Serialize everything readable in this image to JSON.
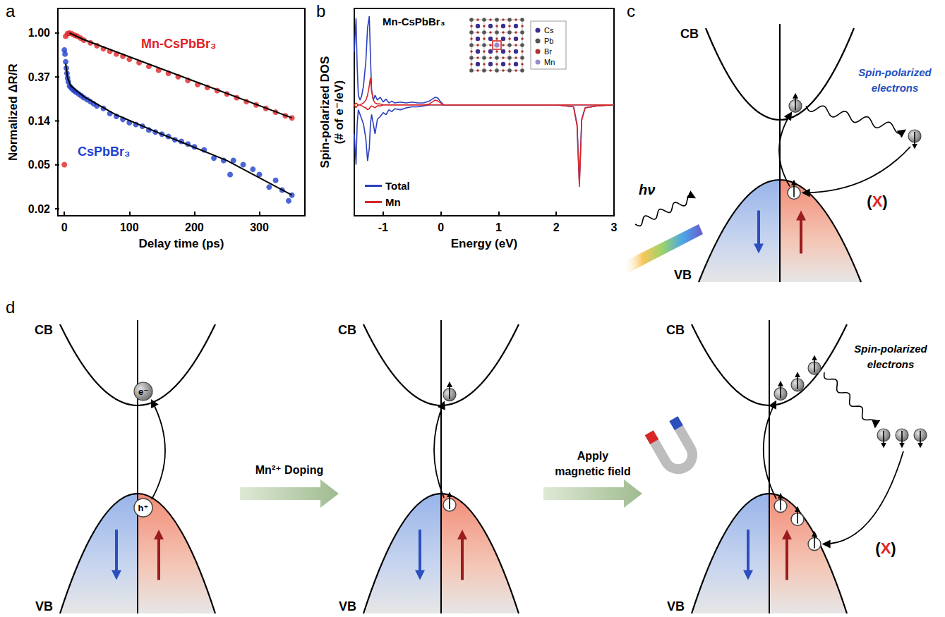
{
  "chart_data": [
    {
      "panel": "a",
      "type": "scatter",
      "log": "y",
      "grid": false,
      "xlabel": "Delay time (ps)",
      "ylabel": "Normalized ΔR/R",
      "xlim": [
        -10,
        370
      ],
      "xticks": [
        0,
        100,
        200,
        300
      ],
      "ylim": [
        0.0156,
        1.75
      ],
      "yticks": [
        {
          "value": 0.0183,
          "label": "0.02"
        },
        {
          "value": 0.0498,
          "label": "0.05"
        },
        {
          "value": 0.1353,
          "label": "0.14"
        },
        {
          "value": 0.3679,
          "label": "0.37"
        },
        {
          "value": 1,
          "label": "1.00"
        }
      ],
      "series": [
        {
          "name": "Mn-CsPbBr₃",
          "color": "#e02424",
          "marker": "circle",
          "x": [
            0,
            2,
            5,
            8,
            12,
            16,
            20,
            25,
            30,
            40,
            50,
            60,
            70,
            80,
            90,
            100,
            115,
            130,
            145,
            160,
            175,
            190,
            205,
            220,
            235,
            250,
            265,
            280,
            295,
            310,
            325,
            340,
            350
          ],
          "values": [
            0.05,
            0.93,
            0.99,
            1.0,
            0.98,
            0.95,
            0.93,
            0.89,
            0.85,
            0.8,
            0.75,
            0.7,
            0.66,
            0.62,
            0.59,
            0.55,
            0.51,
            0.47,
            0.43,
            0.4,
            0.37,
            0.34,
            0.31,
            0.29,
            0.27,
            0.25,
            0.23,
            0.21,
            0.195,
            0.18,
            0.165,
            0.152,
            0.145
          ]
        },
        {
          "name": "CsPbBr₃",
          "color": "#1f3fd0",
          "marker": "circle",
          "x": [
            0,
            1,
            2,
            3,
            4,
            5,
            6,
            8,
            10,
            12,
            15,
            18,
            22,
            26,
            30,
            35,
            40,
            45,
            50,
            60,
            70,
            80,
            90,
            100,
            110,
            120,
            130,
            140,
            150,
            160,
            170,
            180,
            190,
            200,
            215,
            230,
            245,
            255,
            260,
            275,
            290,
            300,
            315,
            325,
            335,
            345,
            350
          ],
          "values": [
            0.68,
            0.62,
            0.52,
            0.45,
            0.4,
            0.36,
            0.33,
            0.3,
            0.29,
            0.28,
            0.27,
            0.26,
            0.25,
            0.24,
            0.23,
            0.22,
            0.21,
            0.2,
            0.19,
            0.18,
            0.16,
            0.15,
            0.14,
            0.13,
            0.125,
            0.12,
            0.11,
            0.105,
            0.1,
            0.095,
            0.088,
            0.085,
            0.08,
            0.075,
            0.07,
            0.058,
            0.055,
            0.04,
            0.055,
            0.05,
            0.045,
            0.04,
            0.03,
            0.035,
            0.028,
            0.022,
            0.025
          ]
        },
        {
          "type": "line",
          "color": "#000000",
          "line_style": "solid",
          "x": [
            8,
            30,
            350
          ],
          "values": [
            1.0,
            0.86,
            0.145
          ]
        },
        {
          "type": "line",
          "color": "#000000",
          "line_style": "solid",
          "x": [
            2,
            5,
            10,
            30,
            80,
            150,
            250,
            350
          ],
          "values": [
            0.5,
            0.36,
            0.3,
            0.235,
            0.155,
            0.1,
            0.055,
            0.025
          ]
        }
      ]
    },
    {
      "panel": "b",
      "type": "line",
      "title": "Mn-CsPbBr₃",
      "grid": false,
      "legend": "lower left",
      "tick_labels": "x",
      "xlabel": "Energy (eV)",
      "ylabel": "Spin-polarized DOS (# of e⁻/eV)",
      "xlim": [
        -1.5,
        3
      ],
      "xticks": [
        -1,
        0,
        1,
        2,
        3
      ],
      "ylim": [
        -1.15,
        1
      ],
      "x": [
        -1.5,
        -1.47,
        -1.45,
        -1.43,
        -1.4,
        -1.37,
        -1.34,
        -1.3,
        -1.27,
        -1.24,
        -1.22,
        -1.2,
        -1.17,
        -1.14,
        -1.1,
        -1.05,
        -1.0,
        -0.95,
        -0.9,
        -0.85,
        -0.8,
        -0.7,
        -0.6,
        -0.5,
        -0.4,
        -0.3,
        -0.2,
        -0.15,
        -0.1,
        -0.05,
        0,
        0.05,
        0.5,
        1.0,
        1.5,
        2.0,
        2.3,
        2.36,
        2.4,
        2.44,
        2.5,
        2.7,
        3.0
      ],
      "series": [
        {
          "name": "Total",
          "color": "#2b3fbf",
          "values": [
            0.55,
            0.9,
            0.4,
            0.1,
            0.05,
            0.1,
            0.2,
            0.45,
            0.8,
            0.92,
            0.5,
            0.15,
            0.05,
            0.1,
            0.05,
            0.08,
            0.03,
            0.06,
            0.02,
            0.04,
            0.02,
            0.03,
            0.02,
            0.03,
            0.02,
            0.02,
            0.04,
            0.06,
            0.08,
            0.07,
            0.03,
            0,
            0,
            0,
            0,
            0,
            0,
            0,
            0,
            0,
            0,
            0,
            0
          ]
        },
        {
          "name": "Total",
          "color": "#2b3fbf",
          "values": [
            -0.3,
            -0.62,
            -0.2,
            -0.05,
            -0.1,
            -0.15,
            -0.2,
            -0.35,
            -0.58,
            -0.45,
            -0.2,
            -0.1,
            -0.2,
            -0.3,
            -0.15,
            -0.12,
            -0.08,
            -0.1,
            -0.05,
            -0.07,
            -0.04,
            -0.05,
            -0.03,
            -0.02,
            -0.02,
            -0.01,
            0,
            0,
            0,
            0,
            0,
            0,
            0,
            0,
            0,
            0,
            -0.02,
            -0.2,
            -0.82,
            -0.15,
            -0.03,
            -0.01,
            0
          ]
        },
        {
          "name": "Mn",
          "color": "#d62728",
          "values": [
            0,
            0.02,
            0.01,
            0,
            0,
            0.01,
            0.02,
            0.05,
            0.1,
            0.2,
            0.28,
            0.15,
            0.05,
            0.02,
            0.01,
            0.01,
            0,
            0,
            0,
            0,
            0,
            0,
            0,
            0,
            0,
            0,
            0.01,
            0.03,
            0.05,
            0.04,
            0.02,
            0,
            0,
            0,
            0,
            0,
            0,
            0,
            0,
            0,
            0,
            0,
            0
          ]
        },
        {
          "name": "Mn",
          "color": "#d62728",
          "values": [
            0,
            -0.03,
            -0.01,
            0,
            0,
            -0.01,
            -0.02,
            -0.03,
            -0.05,
            -0.04,
            -0.02,
            -0.01,
            -0.02,
            -0.03,
            -0.01,
            -0.01,
            0,
            0,
            0,
            0,
            0,
            0,
            0,
            0,
            0,
            0,
            0,
            0,
            0,
            0,
            0,
            0,
            0,
            0,
            0,
            0,
            -0.02,
            -0.22,
            -0.85,
            -0.16,
            -0.03,
            -0.01,
            0
          ]
        }
      ],
      "inset_legend": [
        {
          "label": "Cs",
          "color": "#3b2f8f"
        },
        {
          "label": "Pb",
          "color": "#555555"
        },
        {
          "label": "Br",
          "color": "#b03030"
        },
        {
          "label": "Mn",
          "color": "#9a8ad0"
        }
      ]
    }
  ],
  "diagrams": [
    {
      "panel": "c",
      "cb": "CB",
      "vb": "VB",
      "photon": "hν",
      "caption": "Spin-polarized electrons",
      "blocked": "(X)"
    },
    {
      "panel": "d",
      "cb": "CB",
      "vb": "VB",
      "electron": "e⁻",
      "hole": "h⁺",
      "steps": [
        "Mn²⁺ Doping",
        "Apply magnetic field"
      ],
      "caption": "Spin-polarized electrons",
      "blocked": "(X)"
    }
  ]
}
